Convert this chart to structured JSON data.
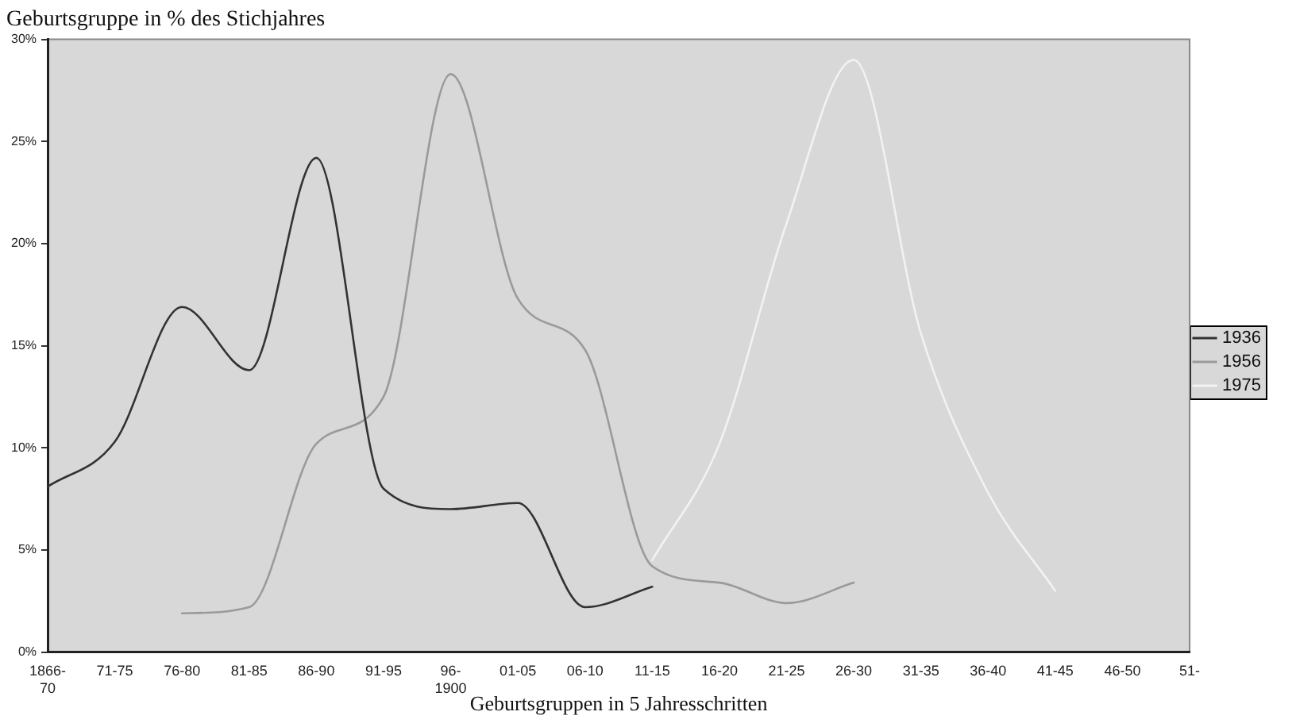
{
  "chart_data": {
    "type": "line",
    "title": "Geburtsgruppe in % des Stichjahres",
    "xlabel": "Geburtsgruppen in 5 Jahresschritten",
    "categories": [
      "1866-70",
      "71-75",
      "76-80",
      "81-85",
      "86-90",
      "91-95",
      "96-1900",
      "01-05",
      "06-10",
      "11-15",
      "16-20",
      "21-25",
      "26-30",
      "31-35",
      "36-40",
      "41-45",
      "46-50",
      "51-"
    ],
    "series": [
      {
        "name": "1936",
        "color": "#333333",
        "values": [
          8.1,
          10.3,
          16.9,
          13.8,
          24.2,
          8.0,
          7.0,
          7.3,
          2.2,
          3.2,
          null,
          null,
          null,
          null,
          null,
          null,
          null,
          null
        ]
      },
      {
        "name": "1956",
        "color": "#9a9a9a",
        "values": [
          null,
          null,
          1.9,
          2.2,
          10.2,
          12.5,
          28.3,
          17.3,
          14.8,
          4.2,
          3.4,
          2.4,
          3.4,
          null,
          null,
          null,
          null,
          null
        ]
      },
      {
        "name": "1975",
        "color": "#f2f2f2",
        "values": [
          null,
          null,
          null,
          null,
          null,
          null,
          null,
          null,
          null,
          4.5,
          10.2,
          21.0,
          29.0,
          15.6,
          7.8,
          3.0,
          null,
          null
        ]
      }
    ],
    "ylim": [
      0,
      30
    ],
    "yticks": [
      {
        "value": 0,
        "label": "0%"
      },
      {
        "value": 5,
        "label": "5%"
      },
      {
        "value": 10,
        "label": "10%"
      },
      {
        "value": 15,
        "label": "15%"
      },
      {
        "value": 20,
        "label": "20%"
      },
      {
        "value": 25,
        "label": "25%"
      },
      {
        "value": 30,
        "label": "30%"
      }
    ],
    "grid": false,
    "legend": "right",
    "marker": "none",
    "line_style": "solid"
  }
}
